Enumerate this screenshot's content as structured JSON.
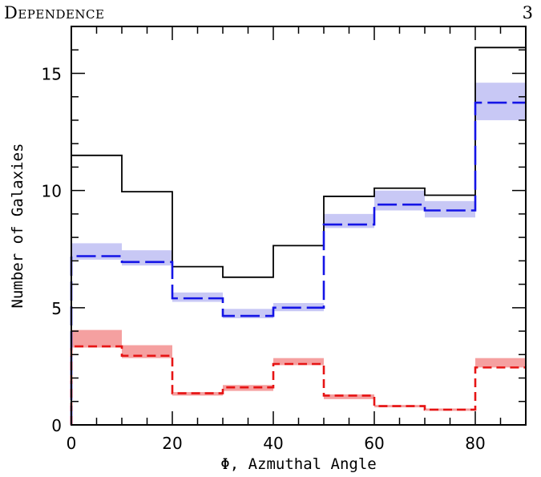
{
  "header": {
    "running_head": "Dependence",
    "page_number": "3"
  },
  "chart_data": {
    "type": "bar",
    "style": "step-histogram",
    "title": "",
    "xlabel": "Φ, Azmuthal Angle",
    "ylabel": "Number of Galaxies",
    "xlim": [
      0,
      90
    ],
    "ylim": [
      0,
      17
    ],
    "x_ticks": [
      0,
      20,
      40,
      60,
      80
    ],
    "y_ticks": [
      0,
      5,
      10,
      15
    ],
    "bin_edges": [
      0,
      10,
      20,
      30,
      40,
      50,
      60,
      70,
      80,
      90
    ],
    "grid": false,
    "legend": "none",
    "series": [
      {
        "line": "solid",
        "color": "#000000",
        "values": [
          11.5,
          9.95,
          6.75,
          6.3,
          7.65,
          9.75,
          10.1,
          9.8,
          16.1
        ]
      },
      {
        "line": "long-dash",
        "color": "#1414e6",
        "band_color": "#c8c8f5",
        "values": [
          7.2,
          6.95,
          5.4,
          4.65,
          5.0,
          8.55,
          9.4,
          9.15,
          13.75
        ],
        "band_low": [
          7.05,
          6.8,
          5.25,
          4.55,
          4.85,
          8.4,
          9.15,
          8.85,
          13.0
        ],
        "band_high": [
          7.75,
          7.45,
          5.65,
          4.95,
          5.2,
          9.0,
          10.0,
          9.55,
          14.6
        ]
      },
      {
        "line": "short-dash",
        "color": "#e61414",
        "band_color": "#f5a0a0",
        "values": [
          3.35,
          2.95,
          1.35,
          1.6,
          2.6,
          1.25,
          0.8,
          0.65,
          2.45
        ],
        "band_low": [
          3.3,
          2.85,
          1.25,
          1.45,
          2.55,
          1.1,
          0.75,
          0.6,
          2.45
        ],
        "band_high": [
          4.05,
          3.4,
          1.4,
          1.7,
          2.85,
          1.3,
          0.85,
          0.7,
          2.85
        ]
      }
    ]
  }
}
